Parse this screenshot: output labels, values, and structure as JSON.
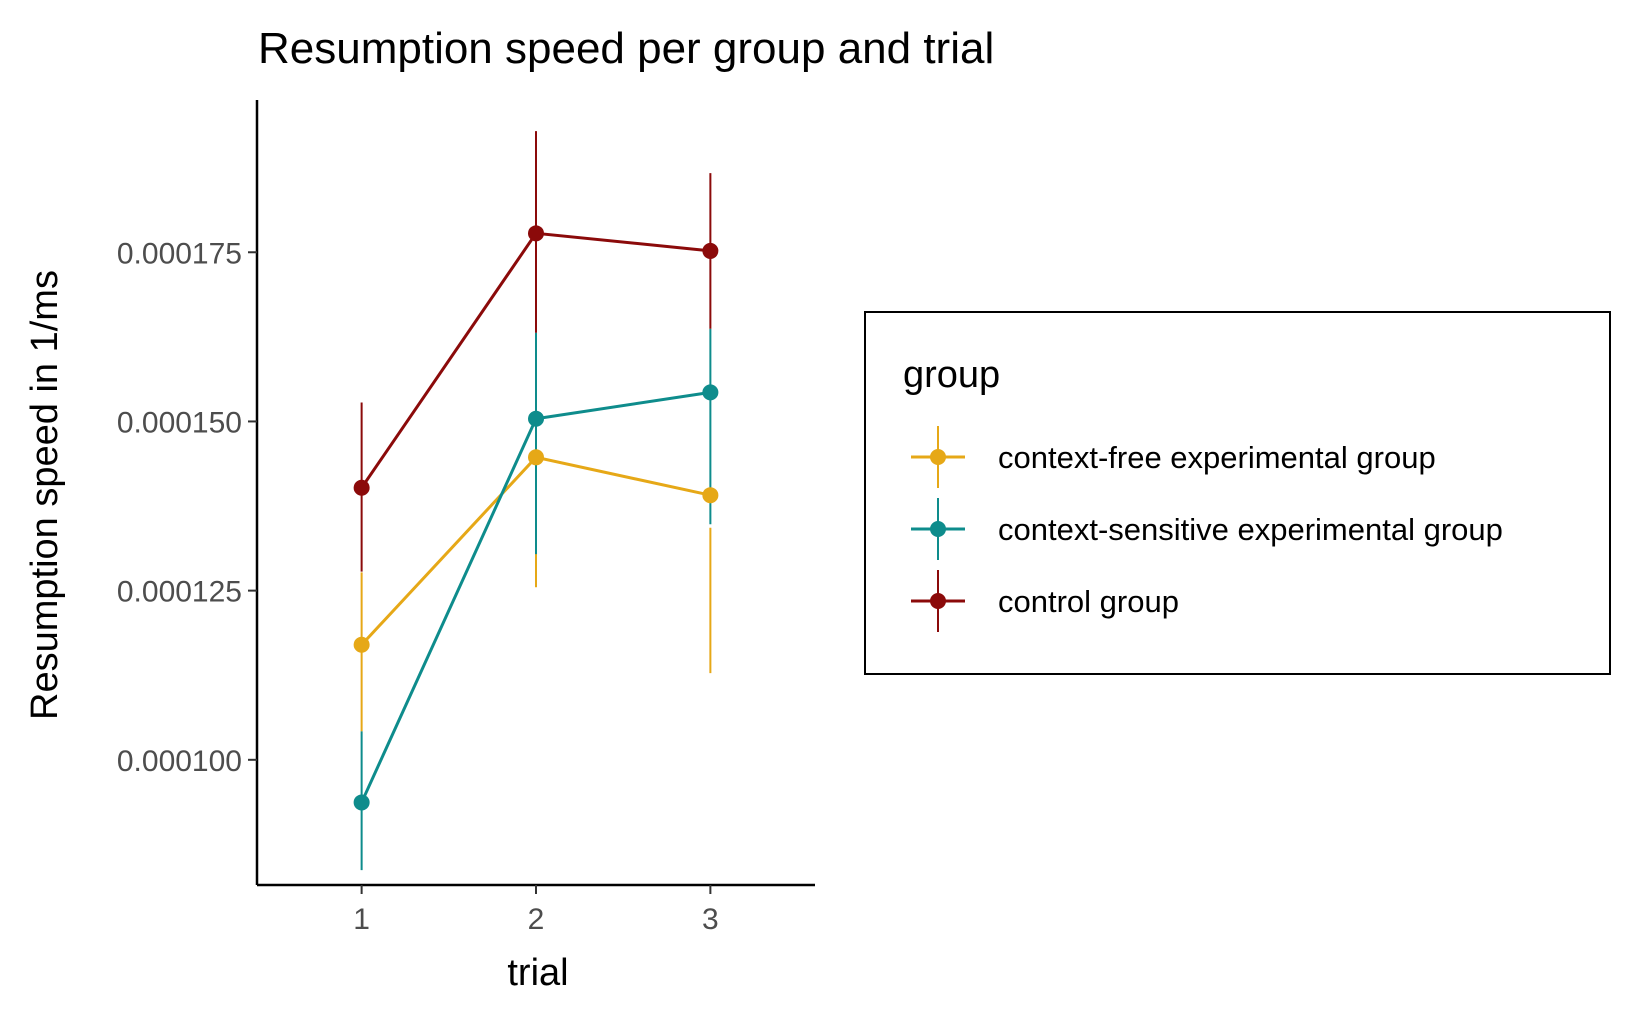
{
  "chart_data": {
    "type": "line",
    "title": "Resumption speed per group and trial",
    "xlabel": "trial",
    "ylabel": "Resumption speed in 1/ms",
    "x": [
      1,
      2,
      3
    ],
    "xlim": [
      0.4,
      3.6
    ],
    "ylim": [
      8.15e-05,
      0.0001975
    ],
    "yticks": [
      0.0001,
      0.000125,
      0.00015,
      0.000175
    ],
    "ytick_labels": [
      "0.000100",
      "0.000125",
      "0.000150",
      "0.000175"
    ],
    "xtick_labels": [
      "1",
      "2",
      "3"
    ],
    "grid": false,
    "legend": {
      "title": "group",
      "position": "right"
    },
    "series": [
      {
        "name": "context-free experimental group",
        "color": "#E6A817",
        "values": [
          0.000117,
          0.0001447,
          0.0001391
        ],
        "lower": [
          0.0001042,
          0.0001255,
          0.0001128
        ],
        "upper": [
          0.0001277,
          0.0001305,
          0.0001343
        ]
      },
      {
        "name": "context-sensitive experimental group",
        "color": "#0E8C8C",
        "values": [
          9.37e-05,
          0.0001504,
          0.0001543
        ],
        "lower": [
          8.37e-05,
          0.0001304,
          0.0001348
        ],
        "upper": [
          0.0001042,
          0.0001631,
          0.0001637
        ]
      },
      {
        "name": "control group",
        "color": "#8B0A0A",
        "values": [
          0.0001402,
          0.0001778,
          0.0001752
        ],
        "lower": [
          0.0001278,
          0.0001631,
          0.0001637
        ],
        "upper": [
          0.0001528,
          0.0001929,
          0.0001867
        ]
      }
    ]
  }
}
